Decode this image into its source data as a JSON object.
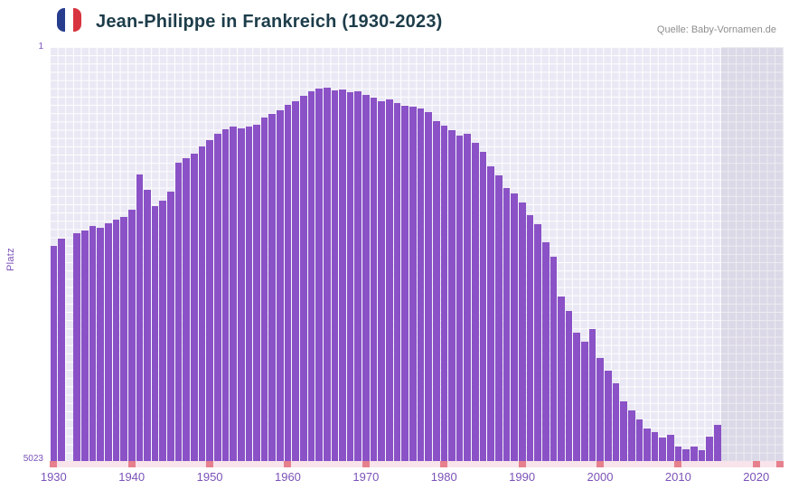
{
  "header": {
    "title": "Jean-Philippe in Frankreich (1930-2023)",
    "source": "Quelle: Baby-Vornamen.de",
    "flag_icon": "french-flag-icon"
  },
  "chart_data": {
    "type": "bar",
    "title": "Jean-Philippe in Frankreich (1930-2023)",
    "xlabel": "",
    "ylabel": "Platz",
    "y_axis": {
      "inverted": true,
      "top_label": "1",
      "bottom_label": "5023",
      "min": 1,
      "max": 5023
    },
    "x_start": 1930,
    "x_end": 2023,
    "x_tick_years": [
      1930,
      1940,
      1950,
      1960,
      1970,
      1980,
      1990,
      2000,
      2010,
      2020
    ],
    "series": [
      {
        "name": "Platz",
        "values": [
          2410,
          2330,
          null,
          2260,
          2230,
          2170,
          2190,
          2140,
          2090,
          2060,
          1970,
          1550,
          1730,
          1930,
          1860,
          1750,
          1400,
          1350,
          1290,
          1210,
          1130,
          1050,
          1000,
          970,
          990,
          965,
          945,
          855,
          810,
          770,
          700,
          660,
          595,
          540,
          505,
          495,
          525,
          515,
          550,
          540,
          580,
          615,
          660,
          635,
          680,
          715,
          725,
          745,
          790,
          900,
          955,
          1010,
          1075,
          1055,
          1165,
          1275,
          1450,
          1560,
          1710,
          1780,
          1890,
          2040,
          2150,
          2370,
          2545,
          3030,
          3200,
          3465,
          3575,
          3420,
          3775,
          3925,
          4080,
          4300,
          4410,
          4520,
          4630,
          4670,
          4740,
          4705,
          4845,
          4880,
          4845,
          4890,
          4730,
          4585,
          null,
          null,
          null,
          null,
          null,
          null,
          null,
          null
        ]
      }
    ],
    "missing_years": [
      1932
    ],
    "no_data_band": {
      "start_year": 2016,
      "end_year": 2023
    },
    "legend": false,
    "grid": true
  },
  "colors": {
    "bar": "#8a52c6",
    "plot_background": "#eae8f4",
    "grid_line": "#ffffff",
    "axis_label": "#7b52b8",
    "tick_strip": "#f8e4ea",
    "tick_mark": "#e7808d",
    "title": "#1d3d4a",
    "source_text": "#8e8e8e",
    "flag_blue": "#283c8e",
    "flag_red": "#d8343f"
  }
}
